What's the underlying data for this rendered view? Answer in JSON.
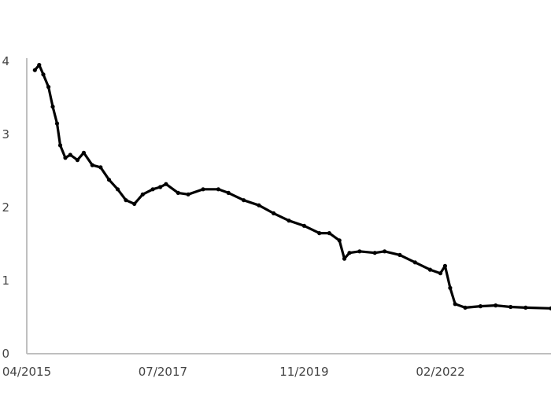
{
  "chart_data": {
    "type": "line",
    "title": "",
    "xlabel": "",
    "ylabel": "",
    "grid": false,
    "legend": "none",
    "colors": {
      "series": "#000000",
      "axis": "#bfbfbf",
      "tick_text": "#444444"
    },
    "xlim": [
      "2015-04-01",
      "2023-12-01"
    ],
    "ylim": [
      0,
      4
    ],
    "x_ticks": [
      {
        "date": "2015-04-01",
        "label": "04/2015"
      },
      {
        "date": "2017-07-01",
        "label": "07/2017"
      },
      {
        "date": "2019-11-01",
        "label": "11/2019"
      },
      {
        "date": "2022-02-01",
        "label": "02/2022"
      }
    ],
    "y_ticks": [
      0,
      1,
      2,
      3,
      4
    ],
    "series": [
      {
        "points": [
          [
            "2015-05-20",
            3.88
          ],
          [
            "2015-06-15",
            3.95
          ],
          [
            "2015-07-10",
            3.82
          ],
          [
            "2015-08-10",
            3.65
          ],
          [
            "2015-09-05",
            3.38
          ],
          [
            "2015-10-01",
            3.15
          ],
          [
            "2015-10-20",
            2.85
          ],
          [
            "2015-11-20",
            2.68
          ],
          [
            "2015-12-20",
            2.72
          ],
          [
            "2016-02-01",
            2.65
          ],
          [
            "2016-03-10",
            2.75
          ],
          [
            "2016-05-01",
            2.58
          ],
          [
            "2016-06-20",
            2.55
          ],
          [
            "2016-08-10",
            2.38
          ],
          [
            "2016-10-01",
            2.25
          ],
          [
            "2016-11-20",
            2.1
          ],
          [
            "2017-01-10",
            2.05
          ],
          [
            "2017-03-01",
            2.18
          ],
          [
            "2017-05-01",
            2.25
          ],
          [
            "2017-06-15",
            2.28
          ],
          [
            "2017-07-20",
            2.32
          ],
          [
            "2017-10-01",
            2.2
          ],
          [
            "2017-12-01",
            2.18
          ],
          [
            "2018-03-01",
            2.25
          ],
          [
            "2018-06-01",
            2.25
          ],
          [
            "2018-08-01",
            2.2
          ],
          [
            "2018-11-01",
            2.1
          ],
          [
            "2019-02-01",
            2.03
          ],
          [
            "2019-05-01",
            1.92
          ],
          [
            "2019-08-01",
            1.82
          ],
          [
            "2019-11-01",
            1.75
          ],
          [
            "2020-02-01",
            1.65
          ],
          [
            "2020-04-01",
            1.65
          ],
          [
            "2020-06-01",
            1.55
          ],
          [
            "2020-07-01",
            1.3
          ],
          [
            "2020-08-01",
            1.38
          ],
          [
            "2020-10-01",
            1.4
          ],
          [
            "2021-01-01",
            1.38
          ],
          [
            "2021-03-01",
            1.4
          ],
          [
            "2021-06-01",
            1.35
          ],
          [
            "2021-09-01",
            1.25
          ],
          [
            "2021-12-01",
            1.15
          ],
          [
            "2022-02-01",
            1.1
          ],
          [
            "2022-03-01",
            1.2
          ],
          [
            "2022-04-01",
            0.9
          ],
          [
            "2022-05-01",
            0.68
          ],
          [
            "2022-07-01",
            0.63
          ],
          [
            "2022-10-01",
            0.65
          ],
          [
            "2023-01-01",
            0.66
          ],
          [
            "2023-04-01",
            0.64
          ],
          [
            "2023-07-01",
            0.63
          ],
          [
            "2023-12-01",
            0.62
          ]
        ]
      }
    ]
  }
}
